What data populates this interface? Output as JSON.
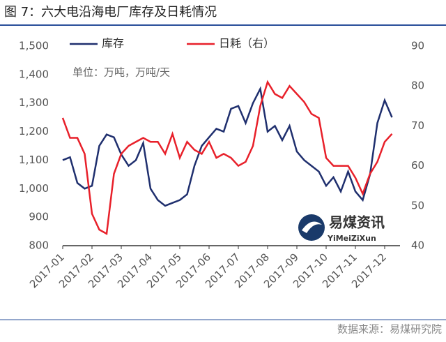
{
  "title": "图 7：六大电沿海电厂库存及日耗情况",
  "source": "数据来源：易煤研究院",
  "watermark": {
    "name": "易煤资讯",
    "pinyin": "YiMeiZiXun"
  },
  "chart_data": {
    "type": "line",
    "note": "单位：万吨，万吨/天",
    "categories": [
      "2017-01",
      null,
      null,
      null,
      "2017-02",
      null,
      null,
      null,
      "2017-03",
      null,
      null,
      null,
      "2017-04",
      null,
      null,
      null,
      "2017-05",
      null,
      null,
      null,
      "2017-06",
      null,
      null,
      null,
      "2017-07",
      null,
      null,
      null,
      "2017-08",
      null,
      null,
      null,
      "2017-09",
      null,
      null,
      null,
      "2017-10",
      null,
      null,
      null,
      "2017-11",
      null,
      null,
      null,
      "2017-12",
      null
    ],
    "series": [
      {
        "name": "库存",
        "color": "#1f2f6e",
        "values": [
          1100,
          1110,
          1020,
          1000,
          1010,
          1150,
          1190,
          1180,
          1120,
          1080,
          1100,
          1160,
          1000,
          960,
          940,
          950,
          960,
          980,
          1080,
          1150,
          1180,
          1210,
          1200,
          1280,
          1290,
          1230,
          1300,
          1350,
          1200,
          1220,
          1170,
          1220,
          1130,
          1100,
          1080,
          1060,
          1010,
          1040,
          990,
          1060,
          990,
          960,
          1050,
          1230,
          1310,
          1250
        ]
      },
      {
        "name": "日耗（右）",
        "color": "#e8202a",
        "axis": "y2",
        "values": [
          72,
          67,
          67,
          63,
          48,
          44,
          43,
          58,
          63,
          65,
          66,
          67,
          66,
          66,
          63,
          68,
          62,
          66,
          64,
          63,
          66,
          62,
          63,
          62,
          60,
          61,
          65,
          75,
          81,
          78,
          77,
          80,
          78,
          76,
          73,
          72,
          62,
          60,
          60,
          60,
          57,
          53,
          58,
          61,
          66,
          68
        ]
      }
    ],
    "ylim": [
      800,
      1500
    ],
    "yticks": [
      800,
      900,
      {
        "value": 1000,
        "label": "1,000"
      },
      {
        "value": 1100,
        "label": "1,100"
      },
      {
        "value": 1200,
        "label": "1,200"
      },
      {
        "value": 1300,
        "label": "1,300"
      },
      {
        "value": 1400,
        "label": "1,400"
      },
      {
        "value": 1500,
        "label": "1,500"
      }
    ],
    "y2lim": [
      40,
      90
    ],
    "y2ticks": [
      40,
      50,
      60,
      70,
      80,
      90
    ]
  }
}
